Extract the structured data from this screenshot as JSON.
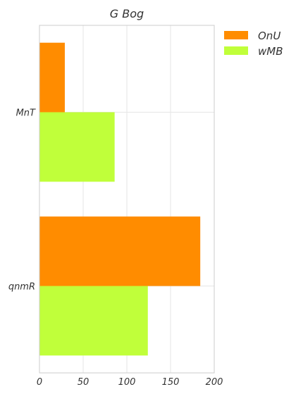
{
  "chart_data": {
    "type": "bar",
    "orientation": "horizontal",
    "title": "G  Bog",
    "xlabel": "",
    "ylabel": "",
    "categories": [
      "MnT",
      "qnmR"
    ],
    "series": [
      {
        "name": "OnU",
        "color": "#ff8c00",
        "values": [
          29,
          184
        ]
      },
      {
        "name": "wMB",
        "color": "#c0ff3a",
        "values": [
          86,
          124
        ]
      }
    ],
    "xlim": [
      0,
      200
    ],
    "xticks": [
      0,
      50,
      100,
      150,
      200
    ],
    "grid": true,
    "legend": "outside-top-right"
  }
}
